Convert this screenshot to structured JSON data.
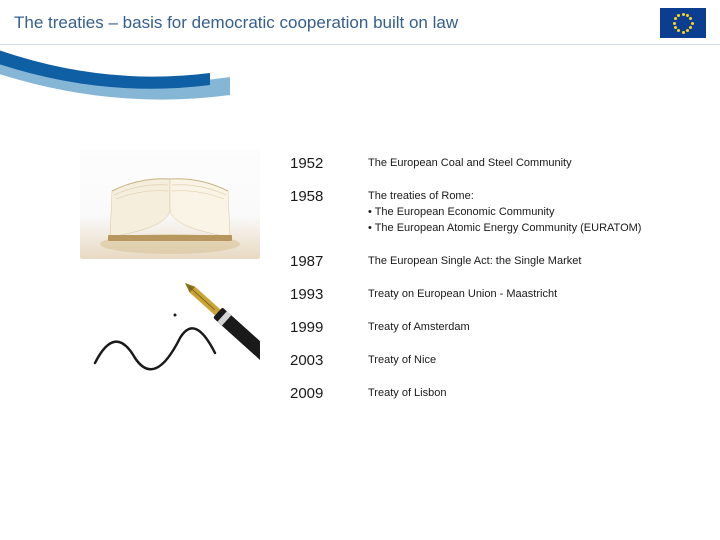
{
  "header": {
    "title": "The treaties – basis for democratic cooperation built on law",
    "flag": {
      "bg_color": "#0b3d91",
      "star_color": "#ffd617"
    }
  },
  "curve": {
    "outer_color": "#86b6d6",
    "inner_color": "#0f5fa5"
  },
  "timeline": [
    {
      "year": "1952",
      "desc": "The European Coal and Steel Community"
    },
    {
      "year": "1958",
      "desc": "The treaties of Rome:\n• The European Economic Community\n• The European Atomic Energy Community (EURATOM)"
    },
    {
      "year": "1987",
      "desc": "The European Single Act: the Single Market"
    },
    {
      "year": "1993",
      "desc": "Treaty on European Union - Maastricht"
    },
    {
      "year": "1999",
      "desc": "Treaty of Amsterdam"
    },
    {
      "year": "2003",
      "desc": "Treaty of Nice"
    },
    {
      "year": "2009",
      "desc": "Treaty of Lisbon"
    }
  ],
  "images": {
    "book": {
      "page_color": "#f3e6cc",
      "spine_shadow": "#b8975f"
    },
    "pen": {
      "nib_color": "#c9a435",
      "ink_color": "#1a1a1a"
    }
  },
  "colors": {
    "title_color": "#355f8c",
    "text_color": "#1a1a1a",
    "header_border": "#d5dde4"
  }
}
